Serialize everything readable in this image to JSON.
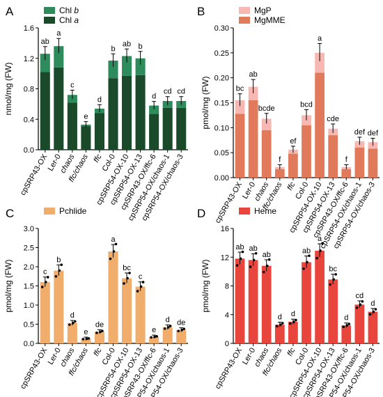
{
  "categories": [
    "cpSRP43-OX",
    "Ler-0",
    "chaos",
    "ffc/chaos",
    "ffc",
    "Col-0",
    "cpSRP54-OX-10",
    "cpSRP54-OX-13",
    "cpSRP43-OX/ffc-6",
    "cpSRP54-OX/chaos-1",
    "cpSRP54-OX/chaos-3"
  ],
  "chart_data": [
    {
      "panel": "A",
      "type": "bar",
      "stacked": true,
      "ylabel": "nmol/mg (FW)",
      "ylim": [
        0,
        1.6
      ],
      "yticks": [
        "0.0",
        "0.4",
        "0.8",
        "1.2",
        "1.6"
      ],
      "series": [
        {
          "name": "Chl a",
          "color": "#1a4a2a",
          "values": [
            1.02,
            1.08,
            0.62,
            0.31,
            0.48,
            0.94,
            0.97,
            0.98,
            0.47,
            0.55,
            0.55
          ]
        },
        {
          "name": "Chl b",
          "color": "#2e8c5c",
          "values": [
            0.24,
            0.28,
            0.1,
            0.02,
            0.06,
            0.23,
            0.26,
            0.22,
            0.11,
            0.09,
            0.09
          ]
        }
      ],
      "letters": [
        "ab",
        "a",
        "c",
        "e",
        "d",
        "b",
        "ab",
        "b",
        "d",
        "cd",
        "cd"
      ],
      "legend": "top-left"
    },
    {
      "panel": "B",
      "type": "bar",
      "stacked": true,
      "ylabel": "pmol/mg (FW)",
      "ylim": [
        0,
        0.3
      ],
      "yticks": [
        "0.00",
        "0.05",
        "0.10",
        "0.15",
        "0.20",
        "0.25",
        "0.30"
      ],
      "series": [
        {
          "name": "MgMME",
          "color": "#e07a5a",
          "values": [
            0.128,
            0.155,
            0.095,
            0.017,
            0.048,
            0.105,
            0.21,
            0.085,
            0.017,
            0.06,
            0.058
          ]
        },
        {
          "name": "MgP",
          "color": "#f7b8b3",
          "values": [
            0.027,
            0.027,
            0.023,
            0.004,
            0.008,
            0.02,
            0.04,
            0.013,
            0.004,
            0.013,
            0.013
          ]
        }
      ],
      "letters": [
        "bc",
        "ab",
        "bcde",
        "f",
        "ef",
        "bcd",
        "a",
        "cde",
        "f",
        "def",
        "def"
      ],
      "legend": "top-left"
    },
    {
      "panel": "C",
      "type": "bar",
      "ylabel": "pmol/mg (FW)",
      "ylim": [
        0,
        3.0
      ],
      "yticks": [
        "0.0",
        "0.5",
        "1.0",
        "1.5",
        "2.0",
        "2.5",
        "3.0"
      ],
      "series": [
        {
          "name": "Pchlide",
          "color": "#f0ad6c",
          "values": [
            1.6,
            1.9,
            0.53,
            0.12,
            0.3,
            2.4,
            1.7,
            1.48,
            0.17,
            0.42,
            0.35
          ]
        }
      ],
      "letters": [
        "c",
        "b",
        "d",
        "e",
        "de",
        "a",
        "bc",
        "c",
        "e",
        "d",
        "de"
      ],
      "legend": "top-left"
    },
    {
      "panel": "D",
      "type": "bar",
      "ylabel": "pmol/mg (FW)",
      "ylim": [
        0,
        16
      ],
      "yticks": [
        "0",
        "4",
        "8",
        "12",
        "16"
      ],
      "series": [
        {
          "name": "Heme",
          "color": "#e8463c",
          "values": [
            11.8,
            11.6,
            10.8,
            2.6,
            3.0,
            11.3,
            12.9,
            8.9,
            2.5,
            5.4,
            4.4
          ]
        }
      ],
      "letters": [
        "ab",
        "ab",
        "ab",
        "d",
        "d",
        "ab",
        "a",
        "bc",
        "d",
        "cd",
        "d"
      ],
      "legend": "top-left"
    }
  ]
}
